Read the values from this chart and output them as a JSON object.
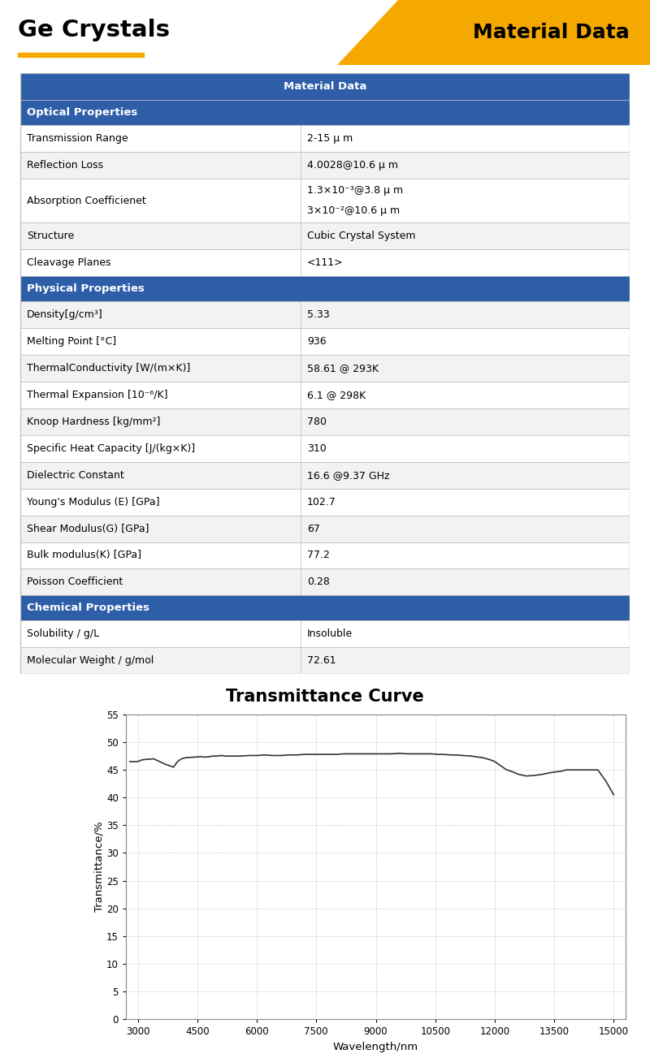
{
  "title_left": "Ge Crystals",
  "title_right": "Material Data",
  "header_color": "#2E5EA8",
  "section_color": "#2E5EA8",
  "row_colors": [
    "#FFFFFF",
    "#F2F2F2"
  ],
  "border_color": "#BBBBBB",
  "gold_color": "#F5A800",
  "table_header": "Material Data",
  "sections": [
    {
      "name": "Optical Properties",
      "rows": [
        [
          "Transmission Range",
          "2-15 μ m"
        ],
        [
          "Reflection Loss",
          "4.0028@10.6 μ m"
        ],
        [
          "Absorption Coefficienet",
          "1.3×10⁻³@3.8 μ m\n3×10⁻²@10.6 μ m"
        ],
        [
          "Structure",
          "Cubic Crystal System"
        ],
        [
          "Cleavage Planes",
          "<111>"
        ]
      ]
    },
    {
      "name": "Physical Properties",
      "rows": [
        [
          "Density[g/cm³]",
          "5.33"
        ],
        [
          "Melting Point [°C]",
          "936"
        ],
        [
          "ThermalConductivity [W/(m×K)]",
          "58.61 @ 293K"
        ],
        [
          "Thermal Expansion [10⁻⁶/K]",
          "6.1 @ 298K"
        ],
        [
          "Knoop Hardness [kg/mm²]",
          "780"
        ],
        [
          "Specific Heat Capacity [J/(kg×K)]",
          "310"
        ],
        [
          "Dielectric Constant",
          "16.6 @9.37 GHz"
        ],
        [
          "Young's Modulus (E) [GPa]",
          "102.7"
        ],
        [
          "Shear Modulus(G) [GPa]",
          "67"
        ],
        [
          "Bulk modulus(K) [GPa]",
          "77.2"
        ],
        [
          "Poisson Coefficient",
          "0.28"
        ]
      ]
    },
    {
      "name": "Chemical Properties",
      "rows": [
        [
          "Solubility / g/L",
          "Insoluble"
        ],
        [
          "Molecular Weight / g/mol",
          "72.61"
        ]
      ]
    }
  ],
  "curve_title": "Transmittance Curve",
  "x_label": "Wavelength/nm",
  "y_label": "Transmittance/%",
  "x_ticks": [
    3000,
    4500,
    6000,
    7500,
    9000,
    10500,
    12000,
    13500,
    15000
  ],
  "y_ticks": [
    0,
    5,
    10,
    15,
    20,
    25,
    30,
    35,
    40,
    45,
    50,
    55
  ],
  "wavelengths": [
    2800,
    3000,
    3100,
    3200,
    3400,
    3700,
    3900,
    4000,
    4100,
    4200,
    4400,
    4600,
    4700,
    4800,
    4900,
    5000,
    5100,
    5200,
    5400,
    5600,
    5800,
    6000,
    6200,
    6400,
    6600,
    6800,
    7000,
    7200,
    7400,
    7600,
    7800,
    8000,
    8200,
    8400,
    8600,
    8800,
    9000,
    9200,
    9400,
    9600,
    9800,
    10000,
    10200,
    10400,
    10600,
    10700,
    10900,
    11000,
    11200,
    11400,
    11500,
    11600,
    11700,
    11800,
    11900,
    12000,
    12100,
    12200,
    12300,
    12400,
    12500,
    12600,
    12800,
    13000,
    13200,
    13400,
    13500,
    13600,
    13700,
    13800,
    13900,
    14000,
    14200,
    14400,
    14600,
    14800,
    15000
  ],
  "transmittance": [
    46.5,
    46.5,
    46.8,
    46.9,
    47.0,
    46.0,
    45.5,
    46.5,
    47.0,
    47.2,
    47.3,
    47.4,
    47.3,
    47.4,
    47.5,
    47.5,
    47.6,
    47.5,
    47.5,
    47.5,
    47.6,
    47.6,
    47.7,
    47.6,
    47.6,
    47.7,
    47.7,
    47.8,
    47.8,
    47.8,
    47.8,
    47.8,
    47.9,
    47.9,
    47.9,
    47.9,
    47.9,
    47.9,
    47.9,
    48.0,
    47.9,
    47.9,
    47.9,
    47.9,
    47.8,
    47.8,
    47.7,
    47.7,
    47.6,
    47.5,
    47.4,
    47.3,
    47.2,
    47.0,
    46.8,
    46.5,
    46.0,
    45.5,
    45.0,
    44.8,
    44.5,
    44.2,
    43.9,
    44.0,
    44.2,
    44.5,
    44.6,
    44.7,
    44.8,
    45.0,
    45.0,
    45.0,
    45.0,
    45.0,
    45.0,
    43.0,
    40.5
  ]
}
